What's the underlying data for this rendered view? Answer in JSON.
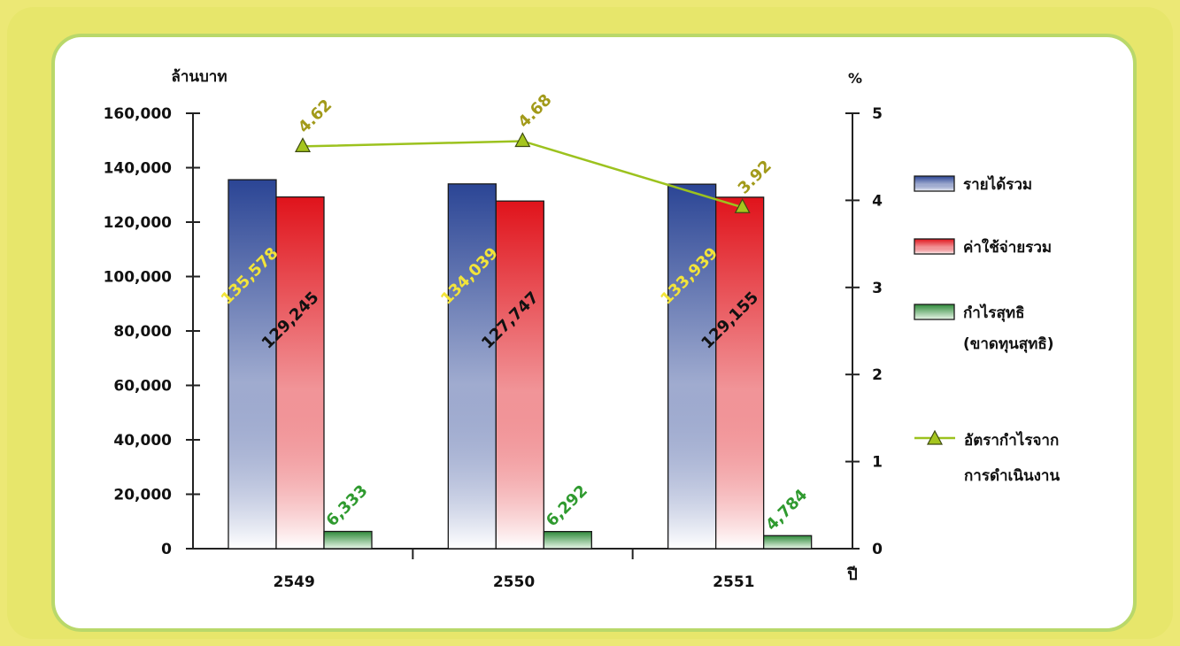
{
  "colors": {
    "income": "#2b4595",
    "expense": "#e0131b",
    "profit": "#2f8a3a",
    "rate_line": "#9cc21e",
    "rate_marker": "#a5c51e",
    "rate_label": "#a29a1a",
    "income_label": "#f2e43a",
    "profit_label": "#2f9a2f"
  },
  "chart_data": {
    "type": "bar",
    "categories": [
      "2549",
      "2550",
      "2551"
    ],
    "series": [
      {
        "name": "รายได้รวม",
        "values": [
          135578,
          134039,
          133939
        ],
        "labels": [
          "135,578",
          "134,039",
          "133,939"
        ]
      },
      {
        "name": "ค่าใช้จ่ายรวม",
        "values": [
          129245,
          127747,
          129155
        ],
        "labels": [
          "129,245",
          "127,747",
          "129,155"
        ]
      },
      {
        "name": "กำไรสุทธิ",
        "name_line2": "(ขาดทุนสุทธิ)",
        "values": [
          6333,
          6292,
          4784
        ],
        "labels": [
          "6,333",
          "6,292",
          "4,784"
        ]
      }
    ],
    "line_series": {
      "name": "อัตรากำไรจาก",
      "name_line2": "การดำเนินงาน",
      "axis": "right",
      "values": [
        4.62,
        4.68,
        3.92
      ],
      "labels": [
        "4.62",
        "4.68",
        "3.92"
      ]
    },
    "ylabel": "ล้านบาท",
    "y2label": "%",
    "xlabel": "ปี",
    "ylim": [
      0,
      160000
    ],
    "y2lim": [
      0,
      5
    ],
    "yticks": [
      "0",
      "20,000",
      "40,000",
      "60,000",
      "80,000",
      "100,000",
      "120,000",
      "140,000",
      "160,000"
    ],
    "y2ticks": [
      "0",
      "1",
      "2",
      "3",
      "4",
      "5"
    ],
    "legend_position": "right",
    "grid": false
  }
}
